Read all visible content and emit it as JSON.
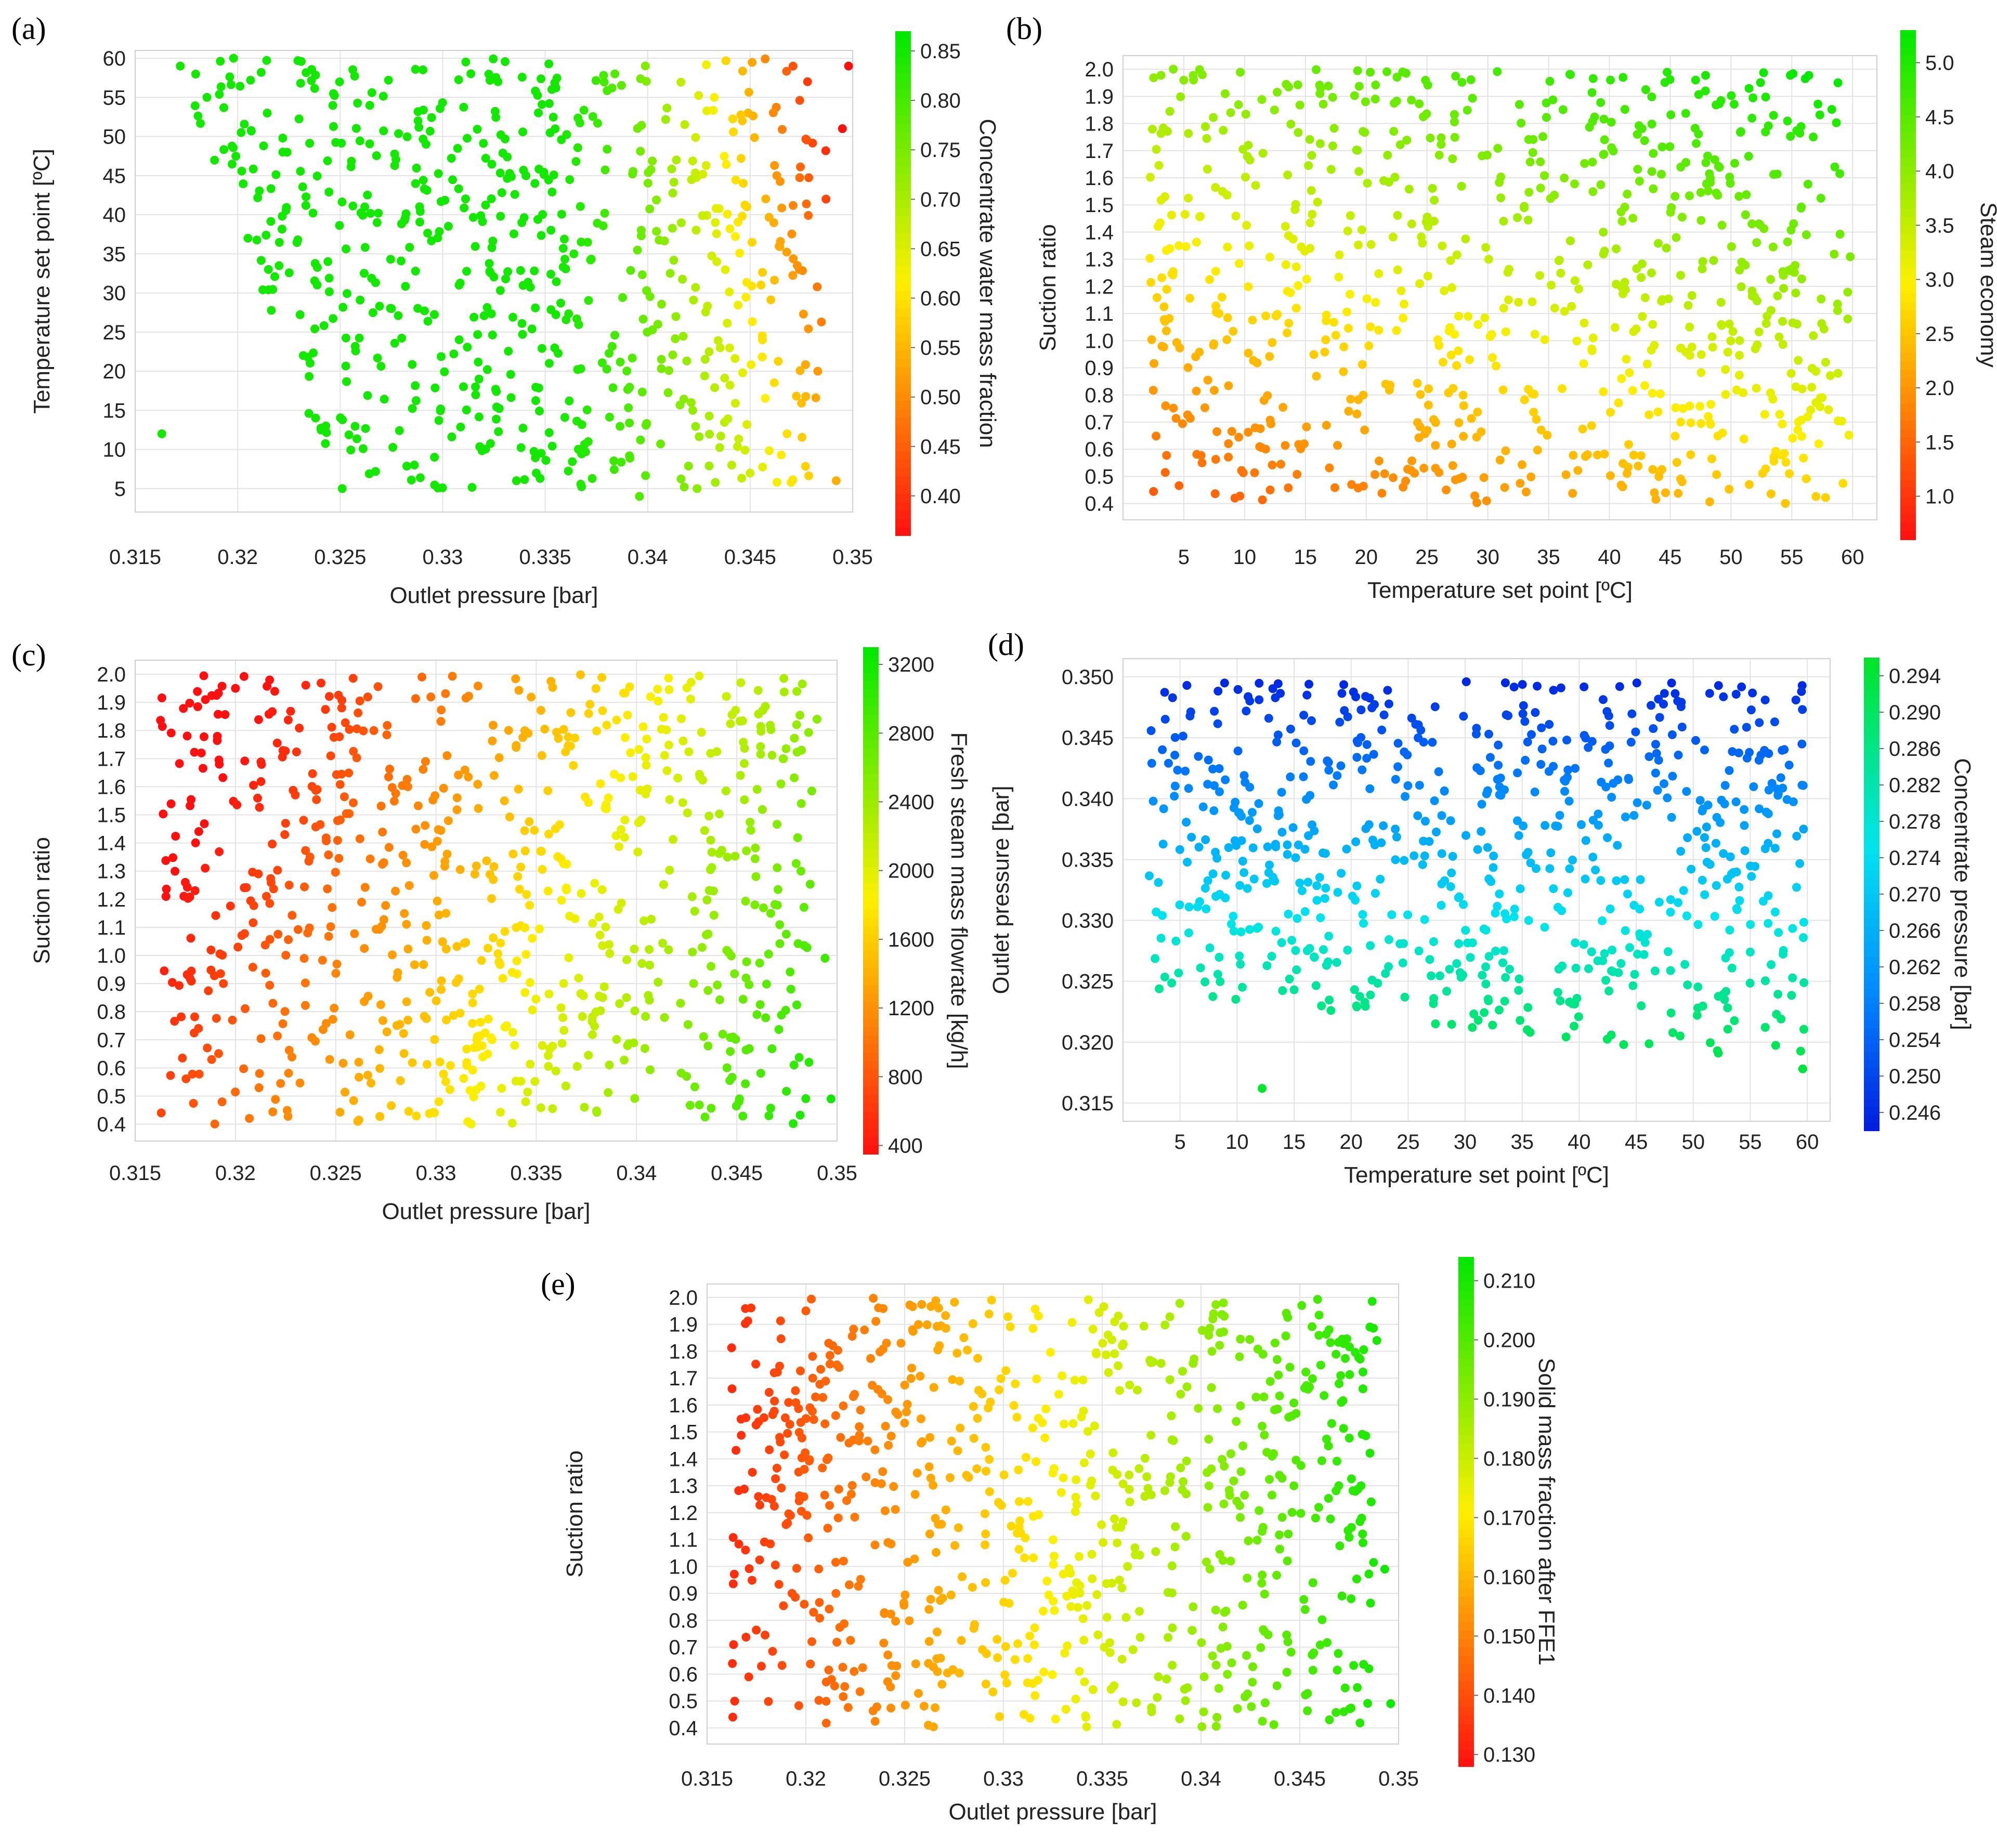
{
  "chart_data": [
    {
      "panel": "(a)",
      "type": "scatter",
      "xlabel": "Outlet pressure [bar]",
      "ylabel": "Temperature  set point [ºC]",
      "xlim": [
        0.315,
        0.35
      ],
      "ylim": [
        2,
        61
      ],
      "xticks": [
        "0.315",
        "0.32",
        "0.325",
        "0.33",
        "0.335",
        "0.34",
        "0.345",
        "0.35"
      ],
      "yticks": [
        "5",
        "10",
        "15",
        "20",
        "25",
        "30",
        "35",
        "40",
        "45",
        "50",
        "55",
        "60"
      ],
      "colorbar": {
        "label": "Concentrate water mass fraction",
        "colormap": "red-yellow-green",
        "range": [
          0.36,
          0.87
        ],
        "ticks": [
          "0.40",
          "0.45",
          "0.50",
          "0.55",
          "0.60",
          "0.65",
          "0.70",
          "0.75",
          "0.80",
          "0.85"
        ]
      },
      "color_model": "concentrate water mass fraction falls from ~0.85 (green) at low outlet pressure to ~0.38 (red) near 0.35 bar, fastest at high temperature set point",
      "points": [
        [
          0.3163,
          12
        ],
        [
          0.3172,
          59
        ],
        [
          0.3185,
          55
        ],
        [
          0.3198,
          60
        ],
        [
          0.3205,
          37
        ],
        [
          0.3215,
          33
        ],
        [
          0.3222,
          48
        ],
        [
          0.3232,
          22
        ],
        [
          0.3243,
          13
        ],
        [
          0.3251,
          5
        ],
        [
          0.3262,
          41
        ],
        [
          0.3275,
          28
        ],
        [
          0.3288,
          52
        ],
        [
          0.3296,
          9
        ],
        [
          0.3308,
          31
        ],
        [
          0.3316,
          18
        ],
        [
          0.3327,
          57
        ],
        [
          0.3336,
          6
        ],
        [
          0.3345,
          44
        ],
        [
          0.3352,
          21
        ],
        [
          0.3364,
          35
        ],
        [
          0.3371,
          11
        ],
        [
          0.3384,
          58
        ],
        [
          0.3396,
          4
        ],
        [
          0.3405,
          26
        ],
        [
          0.3414,
          47
        ],
        [
          0.3422,
          15
        ],
        [
          0.3433,
          39
        ],
        [
          0.3441,
          8
        ],
        [
          0.3449,
          53
        ],
        [
          0.3456,
          24
        ],
        [
          0.3463,
          45
        ],
        [
          0.3468,
          12
        ],
        [
          0.3474,
          33
        ],
        [
          0.3478,
          57
        ],
        [
          0.3483,
          20
        ],
        [
          0.3487,
          42
        ],
        [
          0.3492,
          6
        ],
        [
          0.3495,
          51
        ],
        [
          0.3498,
          59
        ]
      ]
    },
    {
      "panel": "(b)",
      "type": "scatter",
      "xlabel": "Temperature set point [ºC]",
      "ylabel": "Suction ratio",
      "xlim": [
        0,
        62
      ],
      "ylim": [
        0.34,
        2.05
      ],
      "xticks": [
        "5",
        "10",
        "15",
        "20",
        "25",
        "30",
        "35",
        "40",
        "45",
        "50",
        "55",
        "60"
      ],
      "yticks": [
        "0.4",
        "0.5",
        "0.6",
        "0.7",
        "0.8",
        "0.9",
        "1.0",
        "1.1",
        "1.2",
        "1.3",
        "1.4",
        "1.5",
        "1.6",
        "1.7",
        "1.8",
        "1.9",
        "2.0"
      ],
      "colorbar": {
        "label": "Steam economy",
        "colormap": "red-yellow-green",
        "range": [
          0.6,
          5.3
        ],
        "ticks": [
          "1.0",
          "1.5",
          "2.0",
          "2.5",
          "3.0",
          "3.5",
          "4.0",
          "4.5",
          "5.0"
        ]
      },
      "color_model": "steam economy rises with suction ratio and with temperature set point: ~1 (red/orange) at low suction ratio and low temperature, ~5 (green) at high suction ratio",
      "points": [
        [
          4.6,
          1.35
        ],
        [
          5.8,
          1.96
        ],
        [
          6.5,
          0.55
        ],
        [
          7.9,
          1.1
        ],
        [
          9.2,
          0.42
        ],
        [
          10.3,
          1.72
        ],
        [
          11.6,
          0.78
        ],
        [
          12.1,
          0.45
        ],
        [
          13.4,
          1.28
        ],
        [
          14.9,
          0.62
        ],
        [
          16.2,
          1.91
        ],
        [
          17.5,
          1.02
        ],
        [
          18.8,
          0.47
        ],
        [
          20.1,
          1.58
        ],
        [
          21.6,
          0.84
        ],
        [
          23.0,
          1.99
        ],
        [
          24.4,
          1.21
        ],
        [
          25.7,
          0.53
        ],
        [
          27.1,
          1.67
        ],
        [
          28.5,
          0.93
        ],
        [
          29.9,
          0.41
        ],
        [
          31.3,
          1.44
        ],
        [
          32.6,
          1.87
        ],
        [
          34.0,
          0.71
        ],
        [
          35.5,
          1.12
        ],
        [
          36.8,
          1.98
        ],
        [
          38.2,
          0.58
        ],
        [
          39.6,
          1.33
        ],
        [
          41.0,
          0.86
        ],
        [
          42.3,
          1.76
        ],
        [
          43.7,
          0.44
        ],
        [
          45.1,
          1.49
        ],
        [
          46.6,
          1.05
        ],
        [
          47.9,
          1.92
        ],
        [
          49.3,
          0.66
        ],
        [
          50.7,
          1.26
        ],
        [
          52.0,
          0.97
        ],
        [
          53.5,
          1.83
        ],
        [
          54.8,
          0.51
        ],
        [
          56.2,
          1.39
        ],
        [
          57.5,
          0.79
        ],
        [
          58.8,
          1.95
        ],
        [
          59.6,
          1.08
        ]
      ]
    },
    {
      "panel": "(c)",
      "type": "scatter",
      "xlabel": "Outlet pressure [bar]",
      "ylabel": "Suction ratio",
      "xlim": [
        0.315,
        0.35
      ],
      "ylim": [
        0.34,
        2.05
      ],
      "xticks": [
        "0.315",
        "0.32",
        "0.325",
        "0.33",
        "0.335",
        "0.34",
        "0.345",
        "0.35"
      ],
      "yticks": [
        "0.4",
        "0.5",
        "0.6",
        "0.7",
        "0.8",
        "0.9",
        "1.0",
        "1.1",
        "1.2",
        "1.3",
        "1.4",
        "1.5",
        "1.6",
        "1.7",
        "1.8",
        "1.9",
        "2.0"
      ],
      "colorbar": {
        "label": "Fresh steam mass flowrate [kg/h]",
        "colormap": "red-yellow-green",
        "range": [
          350,
          3300
        ],
        "ticks": [
          "400",
          "800",
          "1200",
          "1600",
          "2000",
          "2400",
          "2800",
          "3200"
        ]
      },
      "color_model": "fresh steam mass flowrate increases with outlet pressure and decreases with suction ratio: ~400 kg/h (red) at low pressure, ~3200 kg/h (green) at high pressure and low suction ratio",
      "points": [
        [
          0.3163,
          0.44
        ],
        [
          0.3175,
          1.26
        ],
        [
          0.3183,
          1.72
        ],
        [
          0.3194,
          0.9
        ],
        [
          0.32,
          1.95
        ],
        [
          0.3212,
          0.58
        ],
        [
          0.3225,
          1.47
        ],
        [
          0.3236,
          1.08
        ],
        [
          0.3247,
          0.63
        ],
        [
          0.3253,
          1.88
        ],
        [
          0.3261,
          0.41
        ],
        [
          0.3274,
          1.33
        ],
        [
          0.3286,
          0.77
        ],
        [
          0.3293,
          1.99
        ],
        [
          0.3305,
          1.15
        ],
        [
          0.3317,
          0.52
        ],
        [
          0.3329,
          1.64
        ],
        [
          0.3338,
          0.94
        ],
        [
          0.3346,
          1.79
        ],
        [
          0.3353,
          0.68
        ],
        [
          0.3365,
          1.24
        ],
        [
          0.3374,
          0.46
        ],
        [
          0.3386,
          1.56
        ],
        [
          0.3395,
          0.85
        ],
        [
          0.3407,
          1.92
        ],
        [
          0.3416,
          1.02
        ],
        [
          0.3425,
          0.57
        ],
        [
          0.3437,
          1.41
        ],
        [
          0.3443,
          0.72
        ],
        [
          0.3452,
          1.97
        ],
        [
          0.3459,
          1.18
        ],
        [
          0.3466,
          0.43
        ],
        [
          0.3472,
          1.61
        ],
        [
          0.3477,
          0.88
        ],
        [
          0.3482,
          1.3
        ],
        [
          0.3486,
          0.62
        ],
        [
          0.349,
          1.84
        ],
        [
          0.3494,
          0.99
        ],
        [
          0.3497,
          0.49
        ]
      ]
    },
    {
      "panel": "(d)",
      "type": "scatter",
      "xlabel": "Temperature set point [ºC]",
      "ylabel": "Outlet pressure [bar]",
      "xlim": [
        0,
        62
      ],
      "ylim": [
        0.3135,
        0.3515
      ],
      "xticks": [
        "5",
        "10",
        "15",
        "20",
        "25",
        "30",
        "35",
        "40",
        "45",
        "50",
        "55",
        "60"
      ],
      "yticks": [
        "0.315",
        "0.320",
        "0.325",
        "0.330",
        "0.335",
        "0.340",
        "0.345",
        "0.350"
      ],
      "colorbar": {
        "label": "Concentrate pressure [bar]",
        "colormap": "blue-cyan-green",
        "range": [
          0.244,
          0.296
        ],
        "ticks": [
          "0.246",
          "0.250",
          "0.254",
          "0.258",
          "0.262",
          "0.266",
          "0.270",
          "0.274",
          "0.278",
          "0.282",
          "0.286",
          "0.290",
          "0.294"
        ]
      },
      "color_model": "concentrate pressure falls as outlet pressure rises: ~0.294 bar (green) near 0.318 bar outlet pressure, ~0.246 bar (blue) near 0.350 bar",
      "points": [
        [
          4.5,
          0.3402
        ],
        [
          5.6,
          0.3493
        ],
        [
          6.8,
          0.3261
        ],
        [
          8.1,
          0.3356
        ],
        [
          9.5,
          0.3297
        ],
        [
          10.8,
          0.3472
        ],
        [
          12.2,
          0.3162
        ],
        [
          13.6,
          0.3386
        ],
        [
          15.0,
          0.3243
        ],
        [
          16.3,
          0.3494
        ],
        [
          17.7,
          0.3318
        ],
        [
          19.1,
          0.3427
        ],
        [
          20.5,
          0.3229
        ],
        [
          21.9,
          0.3366
        ],
        [
          23.2,
          0.3489
        ],
        [
          24.6,
          0.3281
        ],
        [
          26.0,
          0.3411
        ],
        [
          27.4,
          0.3215
        ],
        [
          28.8,
          0.3339
        ],
        [
          30.1,
          0.3496
        ],
        [
          31.5,
          0.3255
        ],
        [
          32.9,
          0.3444
        ],
        [
          34.3,
          0.3303
        ],
        [
          35.7,
          0.3208
        ],
        [
          37.0,
          0.3378
        ],
        [
          38.4,
          0.3491
        ],
        [
          39.8,
          0.3236
        ],
        [
          41.2,
          0.3352
        ],
        [
          42.6,
          0.3468
        ],
        [
          43.9,
          0.3198
        ],
        [
          45.3,
          0.3289
        ],
        [
          46.7,
          0.3421
        ],
        [
          48.1,
          0.3495
        ],
        [
          49.5,
          0.3247
        ],
        [
          50.8,
          0.3333
        ],
        [
          52.2,
          0.3191
        ],
        [
          53.6,
          0.3457
        ],
        [
          55.0,
          0.3274
        ],
        [
          56.4,
          0.3389
        ],
        [
          57.7,
          0.3219
        ],
        [
          59.0,
          0.3481
        ],
        [
          59.6,
          0.3178
        ]
      ]
    },
    {
      "panel": "(e)",
      "type": "scatter",
      "xlabel": "Outlet pressure [bar]",
      "ylabel": "Suction ratio",
      "xlim": [
        0.315,
        0.35
      ],
      "ylim": [
        0.34,
        2.05
      ],
      "xticks": [
        "0.315",
        "0.32",
        "0.325",
        "0.33",
        "0.335",
        "0.34",
        "0.345",
        "0.35"
      ],
      "yticks": [
        "0.4",
        "0.5",
        "0.6",
        "0.7",
        "0.8",
        "0.9",
        "1.0",
        "1.1",
        "1.2",
        "1.3",
        "1.4",
        "1.5",
        "1.6",
        "1.7",
        "1.8",
        "1.9",
        "2.0"
      ],
      "colorbar": {
        "label": "Solid mass fraction after FFE1",
        "colormap": "red-yellow-green",
        "range": [
          0.128,
          0.214
        ],
        "ticks": [
          "0.130",
          "0.140",
          "0.150",
          "0.160",
          "0.170",
          "0.180",
          "0.190",
          "0.200",
          "0.210"
        ]
      },
      "color_model": "solid mass fraction after FFE1 increases with outlet pressure: ~0.133 (red) at 0.316 bar, ~0.210 (green) near 0.350 bar",
      "points": [
        [
          0.3163,
          0.44
        ],
        [
          0.3176,
          1.26
        ],
        [
          0.3184,
          1.72
        ],
        [
          0.3193,
          0.9
        ],
        [
          0.32,
          1.95
        ],
        [
          0.3213,
          0.58
        ],
        [
          0.3224,
          1.47
        ],
        [
          0.3235,
          1.08
        ],
        [
          0.3246,
          0.63
        ],
        [
          0.3254,
          1.88
        ],
        [
          0.3262,
          0.41
        ],
        [
          0.3273,
          1.33
        ],
        [
          0.3285,
          0.77
        ],
        [
          0.3294,
          1.99
        ],
        [
          0.3304,
          1.15
        ],
        [
          0.3316,
          0.52
        ],
        [
          0.3328,
          1.64
        ],
        [
          0.3337,
          0.94
        ],
        [
          0.3347,
          1.79
        ],
        [
          0.3354,
          0.68
        ],
        [
          0.3364,
          1.24
        ],
        [
          0.3375,
          0.46
        ],
        [
          0.3385,
          1.56
        ],
        [
          0.3396,
          0.85
        ],
        [
          0.3406,
          1.92
        ],
        [
          0.3415,
          1.02
        ],
        [
          0.3426,
          0.57
        ],
        [
          0.3436,
          1.41
        ],
        [
          0.3444,
          0.72
        ],
        [
          0.3451,
          1.97
        ],
        [
          0.3458,
          1.18
        ],
        [
          0.3465,
          0.43
        ],
        [
          0.3471,
          1.61
        ],
        [
          0.3476,
          0.88
        ],
        [
          0.3481,
          1.3
        ],
        [
          0.3485,
          0.62
        ],
        [
          0.3489,
          1.84
        ],
        [
          0.3493,
          0.99
        ],
        [
          0.3496,
          0.49
        ]
      ]
    }
  ]
}
